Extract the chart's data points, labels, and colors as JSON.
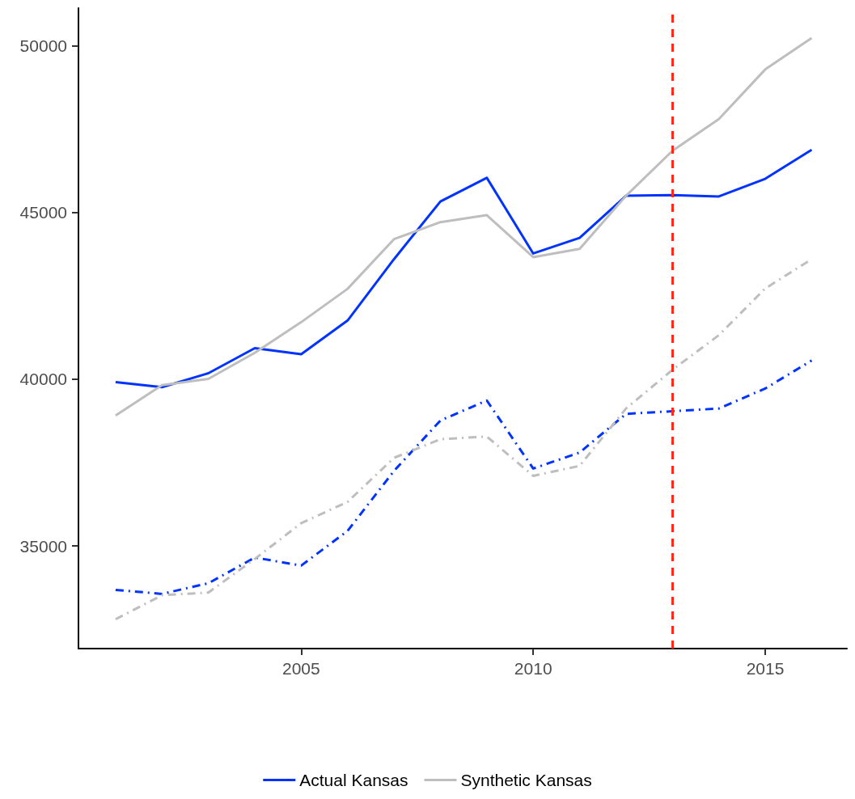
{
  "chart_data": {
    "type": "line",
    "x": [
      2001,
      2002,
      2003,
      2004,
      2005,
      2006,
      2007,
      2008,
      2009,
      2010,
      2011,
      2012,
      2013,
      2014,
      2015,
      2016
    ],
    "series": [
      {
        "name": "Actual Kansas",
        "color": "#0033ff",
        "line_style": "solid",
        "values": [
          39910,
          39760,
          40180,
          40930,
          40750,
          41760,
          43600,
          45330,
          46040,
          43770,
          44240,
          45500,
          45520,
          45480,
          46010,
          46880
        ]
      },
      {
        "name": "Synthetic Kansas",
        "color": "#bebebe",
        "line_style": "solid",
        "values": [
          38910,
          39820,
          40010,
          40790,
          41710,
          42710,
          44200,
          44710,
          44920,
          43660,
          43910,
          45500,
          46850,
          47800,
          49290,
          50230
        ]
      },
      {
        "color": "#0033ff",
        "line_style": "dashed",
        "values": [
          33680,
          33560,
          33880,
          34650,
          34410,
          35450,
          37250,
          38760,
          39360,
          37320,
          37800,
          38960,
          39040,
          39120,
          39720,
          40560
        ]
      },
      {
        "color": "#bebebe",
        "line_style": "dashed",
        "values": [
          32800,
          33520,
          33600,
          34610,
          35680,
          36320,
          37640,
          38200,
          38280,
          37100,
          37400,
          39120,
          40280,
          41320,
          42720,
          43600
        ]
      }
    ],
    "xlim": [
      2000.2,
      2016.76
    ],
    "xticks": [
      2005,
      2010,
      2015
    ],
    "ylim": [
      31920,
      51130
    ],
    "yticks": [
      35000,
      40000,
      45000,
      50000
    ],
    "ref_lines": [
      {
        "axis": "x",
        "value": 2013,
        "color": "#ff2a1a",
        "line_style": "dashed"
      }
    ],
    "grid": false,
    "legend": "bottom",
    "marker": "none"
  }
}
